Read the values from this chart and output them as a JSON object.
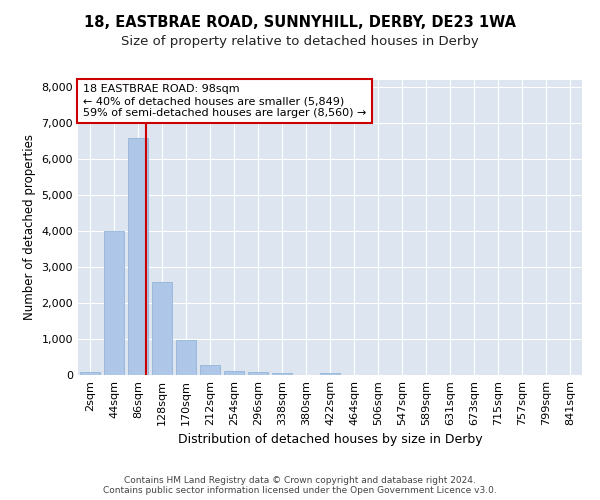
{
  "title1": "18, EASTBRAE ROAD, SUNNYHILL, DERBY, DE23 1WA",
  "title2": "Size of property relative to detached houses in Derby",
  "xlabel": "Distribution of detached houses by size in Derby",
  "ylabel": "Number of detached properties",
  "categories": [
    "2sqm",
    "44sqm",
    "86sqm",
    "128sqm",
    "170sqm",
    "212sqm",
    "254sqm",
    "296sqm",
    "338sqm",
    "380sqm",
    "422sqm",
    "464sqm",
    "506sqm",
    "547sqm",
    "589sqm",
    "631sqm",
    "673sqm",
    "715sqm",
    "757sqm",
    "799sqm",
    "841sqm"
  ],
  "values": [
    70,
    4000,
    6580,
    2580,
    960,
    290,
    120,
    90,
    55,
    5,
    50,
    0,
    0,
    0,
    0,
    0,
    0,
    0,
    0,
    0,
    0
  ],
  "bar_color": "#aec6e8",
  "bar_edge_color": "#8aafd4",
  "vline_color": "#cc0000",
  "vline_pos": 2.35,
  "annotation_text": "18 EASTBRAE ROAD: 98sqm\n← 40% of detached houses are smaller (5,849)\n59% of semi-detached houses are larger (8,560) →",
  "annotation_box_color": "#ffffff",
  "annotation_box_edge": "#cc0000",
  "ylim": [
    0,
    8200
  ],
  "yticks": [
    0,
    1000,
    2000,
    3000,
    4000,
    5000,
    6000,
    7000,
    8000
  ],
  "background_color": "#dde5f0",
  "footer_text": "Contains HM Land Registry data © Crown copyright and database right 2024.\nContains public sector information licensed under the Open Government Licence v3.0.",
  "title1_fontsize": 10.5,
  "title2_fontsize": 9.5,
  "xlabel_fontsize": 9,
  "ylabel_fontsize": 8.5,
  "annotation_fontsize": 8,
  "tick_fontsize": 8,
  "footer_fontsize": 6.5
}
